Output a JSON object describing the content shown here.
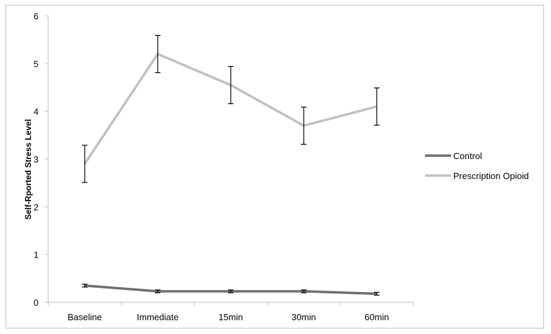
{
  "chart_data": {
    "type": "line",
    "title": "",
    "xlabel": "",
    "ylabel": "Self-Rported Stress Level",
    "categories": [
      "Baseline",
      "Immediate",
      "15min",
      "30min",
      "60min"
    ],
    "ylim": [
      0,
      6
    ],
    "yticks": [
      0,
      1,
      2,
      3,
      4,
      5,
      6
    ],
    "grid": false,
    "legend_position": "right",
    "series": [
      {
        "name": "Control",
        "color": "#6e6e6e",
        "values": [
          0.35,
          0.23,
          0.23,
          0.23,
          0.18
        ],
        "error": [
          0.03,
          0.03,
          0.03,
          0.03,
          0.03
        ]
      },
      {
        "name": "Prescription Opioid",
        "color": "#c0c0c0",
        "values": [
          2.9,
          5.2,
          4.55,
          3.7,
          4.1
        ],
        "error": [
          0.39,
          0.39,
          0.39,
          0.39,
          0.39
        ]
      }
    ]
  }
}
